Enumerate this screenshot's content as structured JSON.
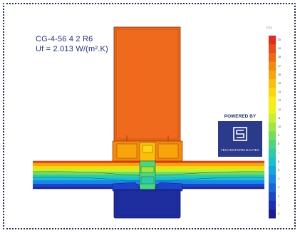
{
  "title": "CG-4-56 4 2 R6",
  "uf_value": "Uf = 2.013 W/(m².K)",
  "legend": {
    "unit": "[°C]",
    "ticks": [
      "20",
      "19",
      "18",
      "17",
      "16",
      "15",
      "14",
      "13",
      "12",
      "11",
      "10",
      "9",
      "8",
      "7",
      "6",
      "5",
      "4",
      "3",
      "2",
      "1",
      "0"
    ],
    "colors": [
      "#e8291c",
      "#ef4b16",
      "#f26a10",
      "#f5890d",
      "#f8a50b",
      "#fbbf0a",
      "#fcd80a",
      "#fbed0c",
      "#eaf516",
      "#c5f02a",
      "#9ee73d",
      "#74de58",
      "#4bd57d",
      "#2bcca7",
      "#17bfd0",
      "#12a6e8",
      "#1787ea",
      "#1a66e0",
      "#1d45cc",
      "#1c2fb2",
      "#1a1d93"
    ]
  },
  "brand": {
    "powered_by": "POWERED BY",
    "logo_name": "TECHNOFORM BAUTEC"
  },
  "colors": {
    "profile_hot": "#ef6a1c",
    "profile_edge": "#d94e10",
    "bottom_cold": "#1e2e9e",
    "border": "#1a2a6c",
    "brand_blue": "#2c3a8c"
  }
}
